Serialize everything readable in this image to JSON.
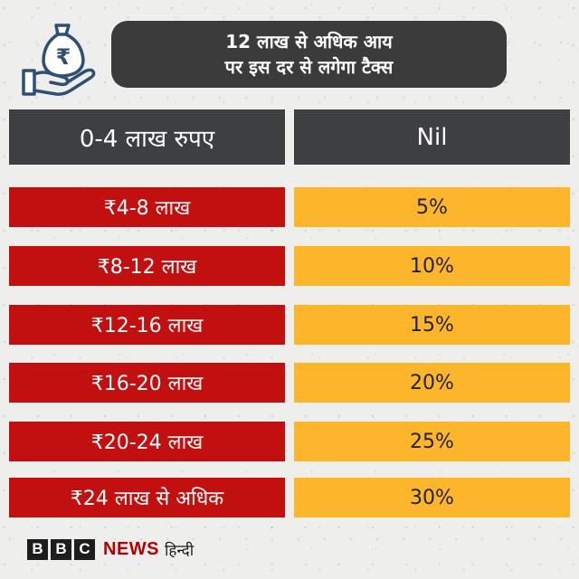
{
  "header": {
    "title_line1": "12 लाख से अधिक आय",
    "title_line2": "पर इस दर से लगेगा टैक्स"
  },
  "table": {
    "header_row": {
      "income": "0-4 लाख रुपए",
      "rate": "Nil"
    },
    "rows": [
      {
        "income": "₹4-8 लाख",
        "rate": "5%"
      },
      {
        "income": "₹8-12 लाख",
        "rate": "10%"
      },
      {
        "income": "₹12-16 लाख",
        "rate": "15%"
      },
      {
        "income": "₹16-20 लाख",
        "rate": "20%"
      },
      {
        "income": "₹20-24 लाख",
        "rate": "25%"
      },
      {
        "income": "₹24 लाख से अधिक",
        "rate": "30%"
      }
    ]
  },
  "footer": {
    "bbc_letters": [
      "B",
      "B",
      "C"
    ],
    "news_label": "NEWS",
    "language_label": "हिन्दी"
  },
  "icon": {
    "name": "rupee-money-bag-hand-icon",
    "symbol": "₹"
  },
  "colors": {
    "title_bg": "#3b3b3b",
    "header_bg": "#3e3f41",
    "income_band": "#c20f0f",
    "rate_band": "#fdb52b",
    "bbc_red": "#b80000"
  }
}
